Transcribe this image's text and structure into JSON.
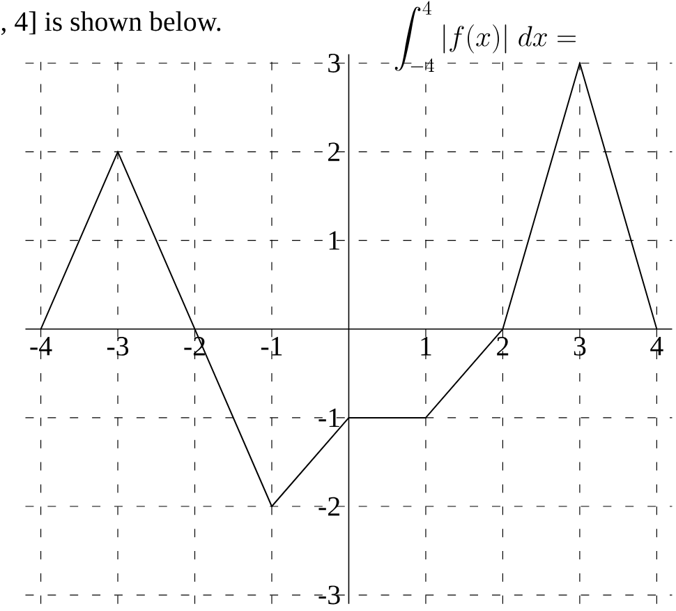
{
  "chart_data": {
    "type": "line",
    "title": ", 4] is shown below.",
    "annotations": [
      "\\displaystyle\\int_{-4}^{4} |f(x)|\\; dx ="
    ],
    "x": [
      -4,
      -3,
      -2,
      -1,
      0,
      1,
      2,
      3,
      4
    ],
    "series": [
      {
        "color": "#000000",
        "values": [
          0,
          2,
          0,
          -2,
          -1,
          -1,
          0,
          3,
          0
        ]
      }
    ],
    "xlim": [
      -4.2,
      4.2
    ],
    "ylim": [
      -3.1,
      3.1
    ],
    "xticks": [
      -4,
      -3,
      -2,
      -1,
      1,
      2,
      3,
      4
    ],
    "yticks": [
      -3,
      -2,
      -1,
      1,
      2,
      3
    ],
    "grid": true,
    "line_style": "solid",
    "marker": "none"
  }
}
